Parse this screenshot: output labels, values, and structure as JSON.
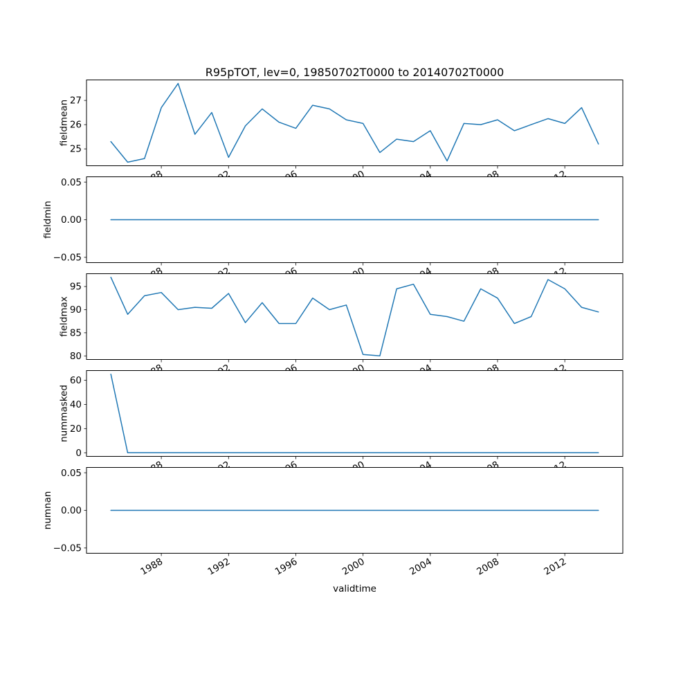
{
  "title": "R95pTOT, lev=0, 19850702T0000 to 20140702T0000",
  "xlabel": "validtime",
  "line_color": "#1f77b4",
  "chart_data": {
    "type": "line",
    "x": [
      1985,
      1986,
      1987,
      1988,
      1989,
      1990,
      1991,
      1992,
      1993,
      1994,
      1995,
      1996,
      1997,
      1998,
      1999,
      2000,
      2001,
      2002,
      2003,
      2004,
      2005,
      2006,
      2007,
      2008,
      2009,
      2010,
      2011,
      2012,
      2013,
      2014
    ],
    "xlim": [
      1983.55,
      2015.45
    ],
    "xticks": [
      1988,
      1992,
      1996,
      2000,
      2004,
      2008,
      2012
    ],
    "xtick_labels": [
      "1988",
      "1992",
      "1996",
      "2000",
      "2004",
      "2008",
      "2012"
    ],
    "subplots": [
      {
        "ylabel": "fieldmean",
        "values": [
          25.3,
          24.45,
          24.6,
          26.7,
          27.7,
          25.6,
          26.5,
          24.65,
          25.95,
          26.65,
          26.1,
          25.85,
          26.8,
          26.65,
          26.2,
          26.05,
          24.85,
          25.4,
          25.3,
          25.75,
          24.5,
          26.05,
          26.0,
          26.2,
          25.75,
          26.0,
          26.25,
          26.05,
          26.7,
          25.2
        ],
        "ylim": [
          24.29,
          27.86
        ],
        "yticks": [
          25,
          26,
          27
        ],
        "ytick_labels": [
          "25",
          "26",
          "27"
        ]
      },
      {
        "ylabel": "fieldmin",
        "values": [
          0,
          0,
          0,
          0,
          0,
          0,
          0,
          0,
          0,
          0,
          0,
          0,
          0,
          0,
          0,
          0,
          0,
          0,
          0,
          0,
          0,
          0,
          0,
          0,
          0,
          0,
          0,
          0,
          0,
          0
        ],
        "ylim": [
          -0.0575,
          0.0575
        ],
        "yticks": [
          -0.05,
          0,
          0.05
        ],
        "ytick_labels": [
          "−0.05",
          "0.00",
          "0.05"
        ]
      },
      {
        "ylabel": "fieldmax",
        "values": [
          97.0,
          89.0,
          93.0,
          93.7,
          90.0,
          90.5,
          90.3,
          93.5,
          87.2,
          91.5,
          87.0,
          87.0,
          92.5,
          90.0,
          91.0,
          80.3,
          80.0,
          94.5,
          95.5,
          89.0,
          88.5,
          87.5,
          94.5,
          92.5,
          87.0,
          88.5,
          96.5,
          94.5,
          90.5,
          89.5
        ],
        "ylim": [
          79.15,
          97.85
        ],
        "yticks": [
          80,
          85,
          90,
          95
        ],
        "ytick_labels": [
          "80",
          "85",
          "90",
          "95"
        ]
      },
      {
        "ylabel": "nummasked",
        "values": [
          65,
          0,
          0,
          0,
          0,
          0,
          0,
          0,
          0,
          0,
          0,
          0,
          0,
          0,
          0,
          0,
          0,
          0,
          0,
          0,
          0,
          0,
          0,
          0,
          0,
          0,
          0,
          0,
          0,
          0
        ],
        "ylim": [
          -3.25,
          68.25
        ],
        "yticks": [
          0,
          20,
          40,
          60
        ],
        "ytick_labels": [
          "0",
          "20",
          "40",
          "60"
        ]
      },
      {
        "ylabel": "numnan",
        "values": [
          0,
          0,
          0,
          0,
          0,
          0,
          0,
          0,
          0,
          0,
          0,
          0,
          0,
          0,
          0,
          0,
          0,
          0,
          0,
          0,
          0,
          0,
          0,
          0,
          0,
          0,
          0,
          0,
          0,
          0
        ],
        "ylim": [
          -0.0575,
          0.0575
        ],
        "yticks": [
          -0.05,
          0,
          0.05
        ],
        "ytick_labels": [
          "−0.05",
          "0.00",
          "0.05"
        ]
      }
    ]
  }
}
